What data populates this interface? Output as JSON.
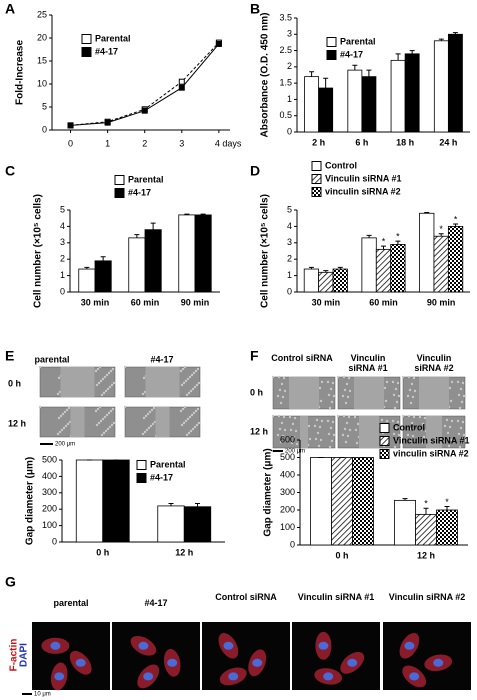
{
  "chart_data": [
    {
      "type": "line",
      "panel": "A",
      "ylabel": "Fold-Increase",
      "x": [
        0,
        1,
        2,
        3,
        4
      ],
      "xlim": [
        -0.5,
        4.3
      ],
      "xticks": [
        0,
        1,
        2,
        3,
        {
          "value": 4,
          "label": "4 days"
        }
      ],
      "ylim": [
        0,
        25
      ],
      "yticks": [
        0,
        5,
        10,
        15,
        20,
        25
      ],
      "legend": "upper left",
      "series": [
        {
          "name": "Parental",
          "color": "#ffffff",
          "dash": true,
          "values": [
            1,
            1.8,
            4.5,
            10.5,
            19
          ]
        },
        {
          "name": "#4-17",
          "color": "#000000",
          "dash": false,
          "values": [
            1,
            1.6,
            4.2,
            9.2,
            18.7
          ]
        }
      ]
    },
    {
      "type": "bar",
      "panel": "B",
      "ylabel": "Absorbance (O.D. 450 nm)",
      "categories": [
        "2 h",
        "6 h",
        "18 h",
        "24 h"
      ],
      "ylim": [
        0,
        3.5
      ],
      "yticks": [
        0,
        0.5,
        1,
        1.5,
        2,
        2.5,
        3,
        3.5
      ],
      "legend": "upper left",
      "series": [
        {
          "name": "Parental",
          "color": "#ffffff",
          "values": [
            1.7,
            1.9,
            2.2,
            2.8
          ],
          "errors": [
            0.15,
            0.15,
            0.2,
            0.05
          ]
        },
        {
          "name": "#4-17",
          "color": "#000000",
          "values": [
            1.35,
            1.7,
            2.4,
            3.0
          ],
          "errors": [
            0.3,
            0.2,
            0.1,
            0.05
          ]
        }
      ]
    },
    {
      "type": "bar",
      "panel": "C",
      "ylabel": "Cell number (×10⁵ cells)",
      "categories": [
        "30 min",
        "60 min",
        "90 min"
      ],
      "ylim": [
        0,
        5
      ],
      "yticks": [
        0,
        1,
        2,
        3,
        4,
        5
      ],
      "legend": "above",
      "series": [
        {
          "name": "Parental",
          "color": "#ffffff",
          "values": [
            1.4,
            3.3,
            4.7
          ],
          "errors": [
            0.1,
            0.2,
            0.05
          ]
        },
        {
          "name": "#4-17",
          "color": "#000000",
          "values": [
            1.9,
            3.8,
            4.7
          ],
          "errors": [
            0.25,
            0.4,
            0.05
          ]
        }
      ]
    },
    {
      "type": "bar",
      "panel": "D",
      "ylabel": "Cell number (×10⁵ cells)",
      "categories": [
        "30 min",
        "60 min",
        "90 min"
      ],
      "ylim": [
        0,
        5
      ],
      "yticks": [
        0,
        1,
        2,
        3,
        4,
        5
      ],
      "legend": "above",
      "series": [
        {
          "name": "Control",
          "color": "#ffffff",
          "values": [
            1.4,
            3.3,
            4.8
          ],
          "errors": [
            0.1,
            0.15,
            0.05
          ]
        },
        {
          "name": "Vinculin siRNA #1",
          "color": "#ffffff",
          "pattern": "hatch",
          "values": [
            1.2,
            2.6,
            3.4
          ],
          "errors": [
            0.1,
            0.2,
            0.15
          ],
          "significance": [
            null,
            "*",
            "*"
          ]
        },
        {
          "name": "vinculin siRNA #2",
          "color": "#ffffff",
          "pattern": "checker",
          "values": [
            1.4,
            2.9,
            4.0
          ],
          "errors": [
            0.1,
            0.2,
            0.15
          ],
          "significance": [
            null,
            "*",
            "*"
          ]
        }
      ]
    },
    {
      "type": "bar",
      "panel": "E",
      "ylabel": "Gap diameter (μm)",
      "categories": [
        "0 h",
        "12 h"
      ],
      "ylim": [
        0,
        500
      ],
      "yticks": [
        0,
        100,
        200,
        300,
        400,
        500
      ],
      "legend": "upper right",
      "series": [
        {
          "name": "Parental",
          "color": "#ffffff",
          "values": [
            500,
            220
          ],
          "errors": [
            0,
            15
          ]
        },
        {
          "name": "#4-17",
          "color": "#000000",
          "values": [
            500,
            215
          ],
          "errors": [
            0,
            20
          ]
        }
      ]
    },
    {
      "type": "bar",
      "panel": "F",
      "ylabel": "Gap diameter (μm)",
      "categories": [
        "0 h",
        "12 h"
      ],
      "ylim": [
        0,
        600
      ],
      "yticks": [
        0,
        100,
        200,
        300,
        400,
        500,
        600
      ],
      "legend": "upper right",
      "series": [
        {
          "name": "Control",
          "color": "#ffffff",
          "values": [
            500,
            255
          ],
          "errors": [
            0,
            10
          ]
        },
        {
          "name": "Vinculin siRNA #1",
          "color": "#ffffff",
          "pattern": "hatch",
          "values": [
            500,
            175
          ],
          "errors": [
            0,
            35
          ],
          "significance": [
            null,
            "*"
          ]
        },
        {
          "name": "vinculin siRNA #2",
          "color": "#ffffff",
          "pattern": "checker",
          "values": [
            500,
            200
          ],
          "errors": [
            0,
            20
          ],
          "significance": [
            null,
            "*"
          ]
        }
      ]
    }
  ],
  "panel_E_images": {
    "columns": [
      "parental",
      "#4-17"
    ],
    "rows": [
      "0 h",
      "12 h"
    ],
    "scale_bar": "200 μm"
  },
  "panel_F_images": {
    "columns": [
      "Control siRNA",
      "Vinculin siRNA #1",
      "Vinculin siRNA #2"
    ],
    "rows": [
      "0 h",
      "12 h"
    ],
    "scale_bar": "200 μm"
  },
  "panel_G": {
    "letter": "G",
    "columns": [
      "parental",
      "#4-17",
      "Control siRNA",
      "Vinculin siRNA #1",
      "Vinculin siRNA #2"
    ],
    "stains": [
      "F-actin",
      "DAPI"
    ],
    "scale_bar": "10 μm"
  }
}
